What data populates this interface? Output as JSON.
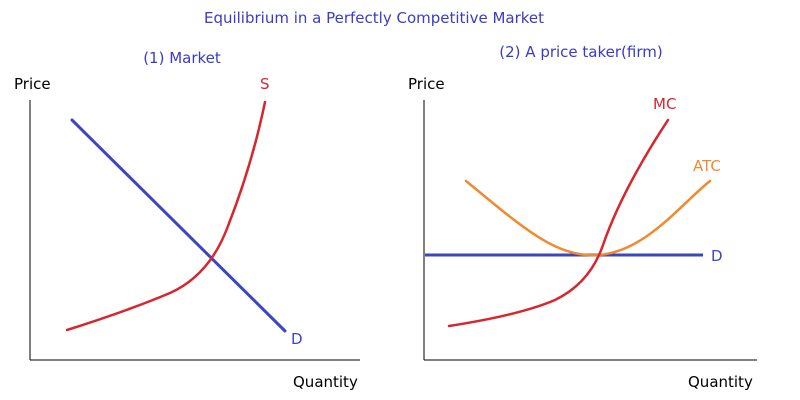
{
  "title": "Equilibrium in a Perfectly Competitive Market",
  "colors": {
    "title": "#3b3bc4",
    "axis": "#000000",
    "blue": "#3d46c2",
    "red": "#d7262e",
    "orange": "#f08a2e",
    "label_red": "#d7262e",
    "label_orange": "#f08a2e"
  },
  "panel_market": {
    "subtitle": "(1) Market",
    "y_axis_label": "Price",
    "x_axis_label": "Quantity",
    "supply_label": "S",
    "demand_label": "D"
  },
  "panel_firm": {
    "subtitle": "(2) A price taker(firm)",
    "y_axis_label": "Price",
    "x_axis_label": "Quantity",
    "mc_label": "MC",
    "atc_label": "ATC",
    "demand_label": "D"
  }
}
